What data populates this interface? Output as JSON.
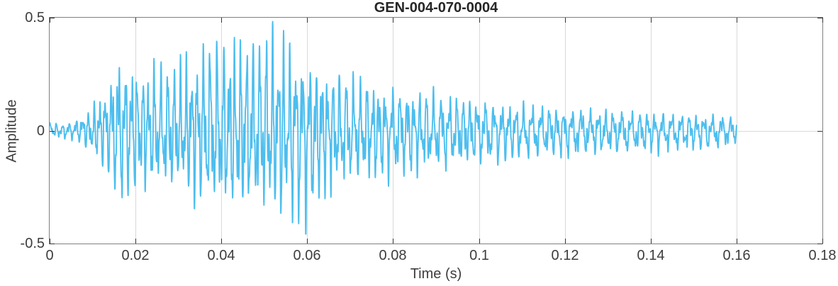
{
  "figure": {
    "title": "GEN-004-070-0004",
    "xlabel": "Time (s)",
    "ylabel": "Amplitude"
  },
  "chart_data": {
    "type": "line",
    "title": "GEN-004-070-0004",
    "xlabel": "Time (s)",
    "ylabel": "Amplitude",
    "xlim": [
      0,
      0.18
    ],
    "ylim": [
      -0.5,
      0.5
    ],
    "x_ticks": [
      0,
      0.02,
      0.04,
      0.06,
      0.08,
      0.1,
      0.12,
      0.14,
      0.16,
      0.18
    ],
    "x_tick_labels": [
      "0",
      "0.02",
      "0.04",
      "0.06",
      "0.08",
      "0.1",
      "0.12",
      "0.14",
      "0.16",
      "0.18"
    ],
    "y_ticks": [
      0.5,
      0,
      -0.5
    ],
    "y_tick_labels": [
      "0.5",
      "0",
      "-0.5"
    ],
    "grid": true,
    "legend": "none",
    "line_color": "#4DBEEE",
    "grid_color": "#d9d9d9",
    "axis_color": "#7f7f7f",
    "tick_color": "#333333",
    "text_color": "#3d3d3d",
    "title_color": "#262626",
    "series": [
      {
        "name": "waveform",
        "t_start": 0,
        "t_end": 0.16,
        "peak_amplitude": 0.48,
        "peak_time": 0.052,
        "min_amplitude": -0.45,
        "min_time": 0.06,
        "dominant_freq_hz_early": 700,
        "dominant_freq_hz_late": 520,
        "envelope": [
          [
            0.0,
            0.045,
            -0.03
          ],
          [
            0.003,
            0.03,
            -0.04
          ],
          [
            0.006,
            0.055,
            -0.045
          ],
          [
            0.008,
            0.095,
            -0.07
          ],
          [
            0.01,
            0.11,
            -0.13
          ],
          [
            0.012,
            0.2,
            -0.16
          ],
          [
            0.014,
            0.26,
            -0.23
          ],
          [
            0.016,
            0.375,
            -0.37
          ],
          [
            0.018,
            0.31,
            -0.33
          ],
          [
            0.02,
            0.34,
            -0.3
          ],
          [
            0.022,
            0.285,
            -0.27
          ],
          [
            0.024,
            0.33,
            -0.29
          ],
          [
            0.026,
            0.29,
            -0.3
          ],
          [
            0.028,
            0.305,
            -0.32
          ],
          [
            0.03,
            0.32,
            -0.3
          ],
          [
            0.032,
            0.35,
            -0.33
          ],
          [
            0.034,
            0.375,
            -0.35
          ],
          [
            0.036,
            0.42,
            -0.38
          ],
          [
            0.038,
            0.43,
            -0.415
          ],
          [
            0.04,
            0.44,
            -0.385
          ],
          [
            0.042,
            0.42,
            -0.4
          ],
          [
            0.044,
            0.435,
            -0.42
          ],
          [
            0.046,
            0.44,
            -0.41
          ],
          [
            0.048,
            0.425,
            -0.4
          ],
          [
            0.05,
            0.455,
            -0.42
          ],
          [
            0.052,
            0.48,
            -0.43
          ],
          [
            0.054,
            0.445,
            -0.425
          ],
          [
            0.056,
            0.43,
            -0.44
          ],
          [
            0.058,
            0.405,
            -0.425
          ],
          [
            0.06,
            0.355,
            -0.45
          ],
          [
            0.062,
            0.33,
            -0.385
          ],
          [
            0.064,
            0.305,
            -0.325
          ],
          [
            0.066,
            0.285,
            -0.3
          ],
          [
            0.068,
            0.27,
            -0.285
          ],
          [
            0.07,
            0.26,
            -0.27
          ],
          [
            0.074,
            0.24,
            -0.255
          ],
          [
            0.078,
            0.215,
            -0.23
          ],
          [
            0.082,
            0.205,
            -0.22
          ],
          [
            0.086,
            0.195,
            -0.21
          ],
          [
            0.09,
            0.18,
            -0.195
          ],
          [
            0.095,
            0.165,
            -0.18
          ],
          [
            0.1,
            0.15,
            -0.165
          ],
          [
            0.105,
            0.135,
            -0.155
          ],
          [
            0.11,
            0.125,
            -0.145
          ],
          [
            0.115,
            0.118,
            -0.135
          ],
          [
            0.12,
            0.11,
            -0.13
          ],
          [
            0.125,
            0.103,
            -0.122
          ],
          [
            0.13,
            0.098,
            -0.118
          ],
          [
            0.135,
            0.092,
            -0.112
          ],
          [
            0.14,
            0.09,
            -0.108
          ],
          [
            0.145,
            0.085,
            -0.102
          ],
          [
            0.15,
            0.08,
            -0.098
          ],
          [
            0.155,
            0.074,
            -0.092
          ],
          [
            0.16,
            0.07,
            -0.06
          ]
        ]
      }
    ]
  }
}
